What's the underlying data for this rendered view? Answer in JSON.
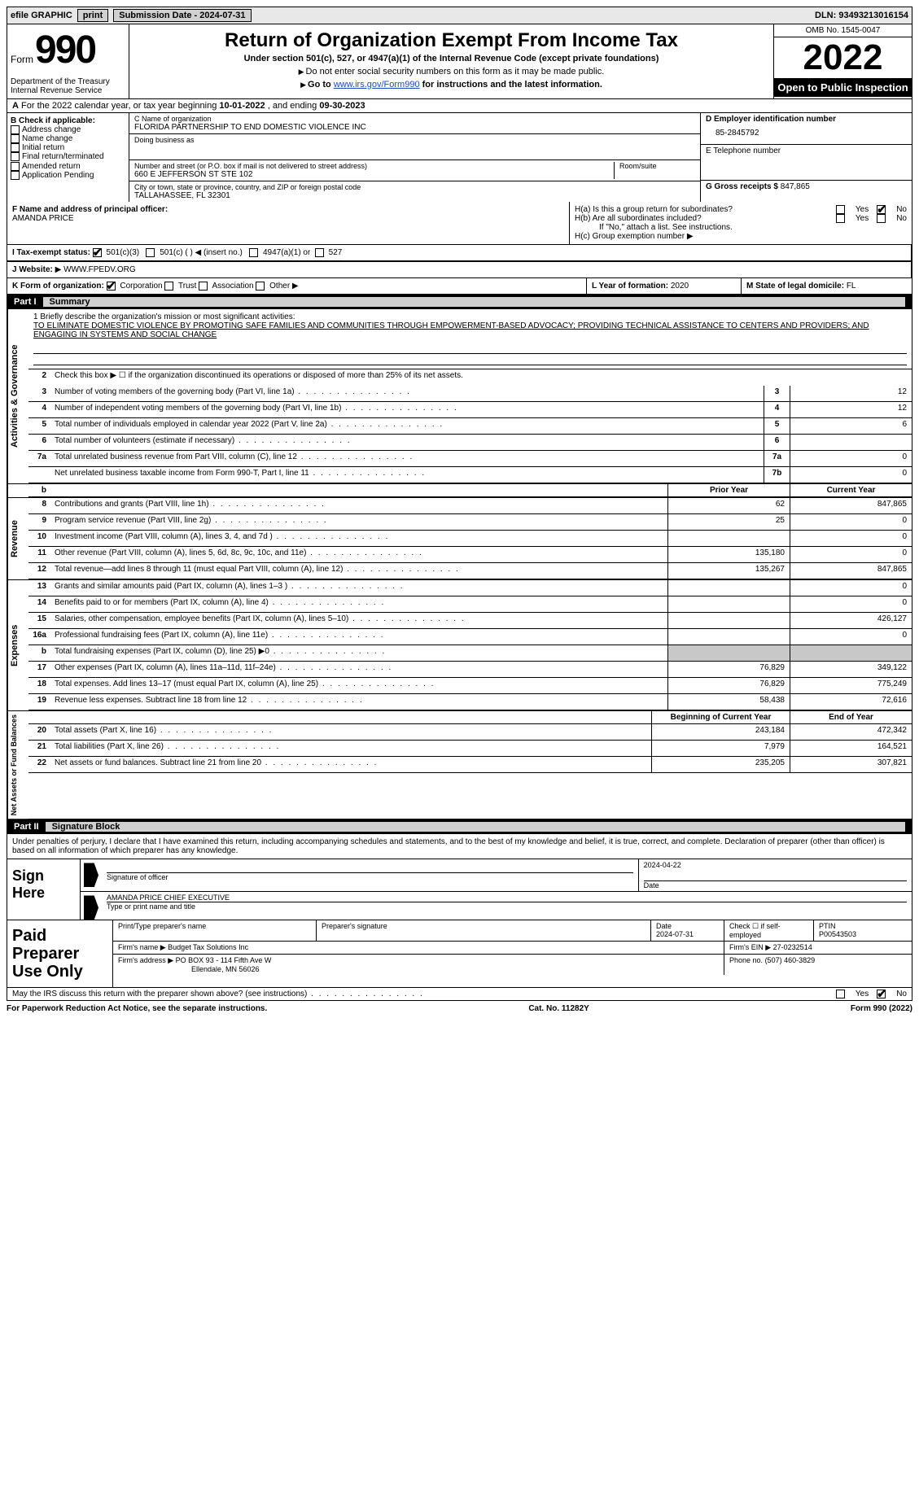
{
  "top": {
    "efile": "efile GRAPHIC",
    "print": "print",
    "submission": "Submission Date - 2024-07-31",
    "dln": "DLN: 93493213016154"
  },
  "header": {
    "form_word": "Form",
    "form_num": "990",
    "title": "Return of Organization Exempt From Income Tax",
    "subtitle": "Under section 501(c), 527, or 4947(a)(1) of the Internal Revenue Code (except private foundations)",
    "note1": "Do not enter social security numbers on this form as it may be made public.",
    "note2_pre": "Go to ",
    "note2_link": "www.irs.gov/Form990",
    "note2_post": " for instructions and the latest information.",
    "dept": "Department of the Treasury\nInternal Revenue Service",
    "omb": "OMB No. 1545-0047",
    "year": "2022",
    "open": "Open to Public Inspection"
  },
  "row_a": {
    "label": "A",
    "text_pre": "For the 2022 calendar year, or tax year beginning ",
    "begin": "10-01-2022",
    "mid": " , and ending ",
    "end": "09-30-2023"
  },
  "col_b": {
    "label": "B Check if applicable:",
    "items": [
      "Address change",
      "Name change",
      "Initial return",
      "Final return/terminated",
      "Amended return",
      "Application Pending"
    ]
  },
  "col_c": {
    "name_lbl": "C Name of organization",
    "name": "FLORIDA PARTNERSHIP TO END DOMESTIC VIOLENCE INC",
    "dba_lbl": "Doing business as",
    "addr_lbl": "Number and street (or P.O. box if mail is not delivered to street address)",
    "addr": "660 E JEFFERSON ST STE 102",
    "room_lbl": "Room/suite",
    "city_lbl": "City or town, state or province, country, and ZIP or foreign postal code",
    "city": "TALLAHASSEE, FL  32301"
  },
  "col_de": {
    "d_lbl": "D Employer identification number",
    "ein": "85-2845792",
    "e_lbl": "E Telephone number",
    "g_lbl": "G Gross receipts $",
    "g_val": "847,865"
  },
  "row_f": {
    "f_lbl": "F  Name and address of principal officer:",
    "officer": "AMANDA PRICE"
  },
  "row_h": {
    "ha": "H(a)  Is this a group return for subordinates?",
    "hb": "H(b)  Are all subordinates included?",
    "hb_note": "If \"No,\" attach a list. See instructions.",
    "hc": "H(c)  Group exemption number",
    "yes": "Yes",
    "no": "No",
    "ha_no_checked": true
  },
  "row_i": {
    "lbl": "I   Tax-exempt status:",
    "opts": [
      "501(c)(3)",
      "501(c) (   ) ◀ (insert no.)",
      "4947(a)(1) or",
      "527"
    ]
  },
  "row_j": {
    "lbl": "J   Website:",
    "val": "WWW.FPEDV.ORG"
  },
  "row_k": {
    "lbl": "K Form of organization:",
    "opts": [
      "Corporation",
      "Trust",
      "Association",
      "Other"
    ],
    "l_lbl": "L Year of formation:",
    "l_val": "2020",
    "m_lbl": "M State of legal domicile:",
    "m_val": "FL"
  },
  "part1": {
    "label": "Part I",
    "title": "Summary"
  },
  "mission": {
    "q1": "1   Briefly describe the organization's mission or most significant activities:",
    "text": "TO ELIMINATE DOMESTIC VIOLENCE BY PROMOTING SAFE FAMILIES AND COMMUNITIES THROUGH EMPOWERMENT-BASED ADVOCACY; PROVIDING TECHNICAL ASSISTANCE TO CENTERS AND PROVIDERS; AND ENGAGING IN SYSTEMS AND SOCIAL CHANGE"
  },
  "summary": {
    "q2": "Check this box ▶ ☐ if the organization discontinued its operations or disposed of more than 25% of its net assets.",
    "rows_single": [
      {
        "n": "3",
        "t": "Number of voting members of the governing body (Part VI, line 1a)",
        "box": "3",
        "v": "12"
      },
      {
        "n": "4",
        "t": "Number of independent voting members of the governing body (Part VI, line 1b)",
        "box": "4",
        "v": "12"
      },
      {
        "n": "5",
        "t": "Total number of individuals employed in calendar year 2022 (Part V, line 2a)",
        "box": "5",
        "v": "6"
      },
      {
        "n": "6",
        "t": "Total number of volunteers (estimate if necessary)",
        "box": "6",
        "v": ""
      },
      {
        "n": "7a",
        "t": "Total unrelated business revenue from Part VIII, column (C), line 12",
        "box": "7a",
        "v": "0"
      },
      {
        "n": "",
        "t": "Net unrelated business taxable income from Form 990-T, Part I, line 11",
        "box": "7b",
        "v": "0"
      }
    ],
    "prior_hdr": "Prior Year",
    "current_hdr": "Current Year",
    "rev_rows": [
      {
        "n": "8",
        "t": "Contributions and grants (Part VIII, line 1h)",
        "p": "62",
        "c": "847,865"
      },
      {
        "n": "9",
        "t": "Program service revenue (Part VIII, line 2g)",
        "p": "25",
        "c": "0"
      },
      {
        "n": "10",
        "t": "Investment income (Part VIII, column (A), lines 3, 4, and 7d )",
        "p": "",
        "c": "0"
      },
      {
        "n": "11",
        "t": "Other revenue (Part VIII, column (A), lines 5, 6d, 8c, 9c, 10c, and 11e)",
        "p": "135,180",
        "c": "0"
      },
      {
        "n": "12",
        "t": "Total revenue—add lines 8 through 11 (must equal Part VIII, column (A), line 12)",
        "p": "135,267",
        "c": "847,865"
      }
    ],
    "exp_rows": [
      {
        "n": "13",
        "t": "Grants and similar amounts paid (Part IX, column (A), lines 1–3 )",
        "p": "",
        "c": "0"
      },
      {
        "n": "14",
        "t": "Benefits paid to or for members (Part IX, column (A), line 4)",
        "p": "",
        "c": "0"
      },
      {
        "n": "15",
        "t": "Salaries, other compensation, employee benefits (Part IX, column (A), lines 5–10)",
        "p": "",
        "c": "426,127"
      },
      {
        "n": "16a",
        "t": "Professional fundraising fees (Part IX, column (A), line 11e)",
        "p": "",
        "c": "0"
      },
      {
        "n": "b",
        "t": "Total fundraising expenses (Part IX, column (D), line 25) ▶0",
        "p": "SHADE",
        "c": "SHADE"
      },
      {
        "n": "17",
        "t": "Other expenses (Part IX, column (A), lines 11a–11d, 11f–24e)",
        "p": "76,829",
        "c": "349,122"
      },
      {
        "n": "18",
        "t": "Total expenses. Add lines 13–17 (must equal Part IX, column (A), line 25)",
        "p": "76,829",
        "c": "775,249"
      },
      {
        "n": "19",
        "t": "Revenue less expenses. Subtract line 18 from line 12",
        "p": "58,438",
        "c": "72,616"
      }
    ],
    "na_hdr1": "Beginning of Current Year",
    "na_hdr2": "End of Year",
    "na_rows": [
      {
        "n": "20",
        "t": "Total assets (Part X, line 16)",
        "p": "243,184",
        "c": "472,342"
      },
      {
        "n": "21",
        "t": "Total liabilities (Part X, line 26)",
        "p": "7,979",
        "c": "164,521"
      },
      {
        "n": "22",
        "t": "Net assets or fund balances. Subtract line 21 from line 20",
        "p": "235,205",
        "c": "307,821"
      }
    ]
  },
  "side_tabs": {
    "gov": "Activities & Governance",
    "rev": "Revenue",
    "exp": "Expenses",
    "na": "Net Assets or Fund Balances"
  },
  "part2": {
    "label": "Part II",
    "title": "Signature Block"
  },
  "sig": {
    "decl": "Under penalties of perjury, I declare that I have examined this return, including accompanying schedules and statements, and to the best of my knowledge and belief, it is true, correct, and complete. Declaration of preparer (other than officer) is based on all information of which preparer has any knowledge.",
    "sign_here": "Sign Here",
    "sig_officer": "Signature of officer",
    "date": "2024-04-22",
    "date_lbl": "Date",
    "name": "AMANDA PRICE CHIEF EXECUTIVE",
    "name_lbl": "Type or print name and title"
  },
  "prep": {
    "label": "Paid Preparer Use Only",
    "print_name_lbl": "Print/Type preparer's name",
    "sig_lbl": "Preparer's signature",
    "date_lbl": "Date",
    "date": "2024-07-31",
    "check_lbl": "Check ☐ if self-employed",
    "ptin_lbl": "PTIN",
    "ptin": "P00543503",
    "firm_name_lbl": "Firm's name   ▶",
    "firm_name": "Budget Tax Solutions Inc",
    "firm_ein_lbl": "Firm's EIN ▶",
    "firm_ein": "27-0232514",
    "firm_addr_lbl": "Firm's address ▶",
    "firm_addr1": "PO BOX 93 - 114 Fifth Ave W",
    "firm_addr2": "Ellendale, MN  56026",
    "phone_lbl": "Phone no.",
    "phone": "(507) 460-3829"
  },
  "footer": {
    "discuss": "May the IRS discuss this return with the preparer shown above? (see instructions)",
    "yes": "Yes",
    "no": "No",
    "no_checked": true,
    "pra": "For Paperwork Reduction Act Notice, see the separate instructions.",
    "cat": "Cat. No. 11282Y",
    "form": "Form 990 (2022)"
  },
  "colors": {
    "black": "#000000",
    "grey": "#d0d0d0",
    "link": "#1a4cc4"
  }
}
